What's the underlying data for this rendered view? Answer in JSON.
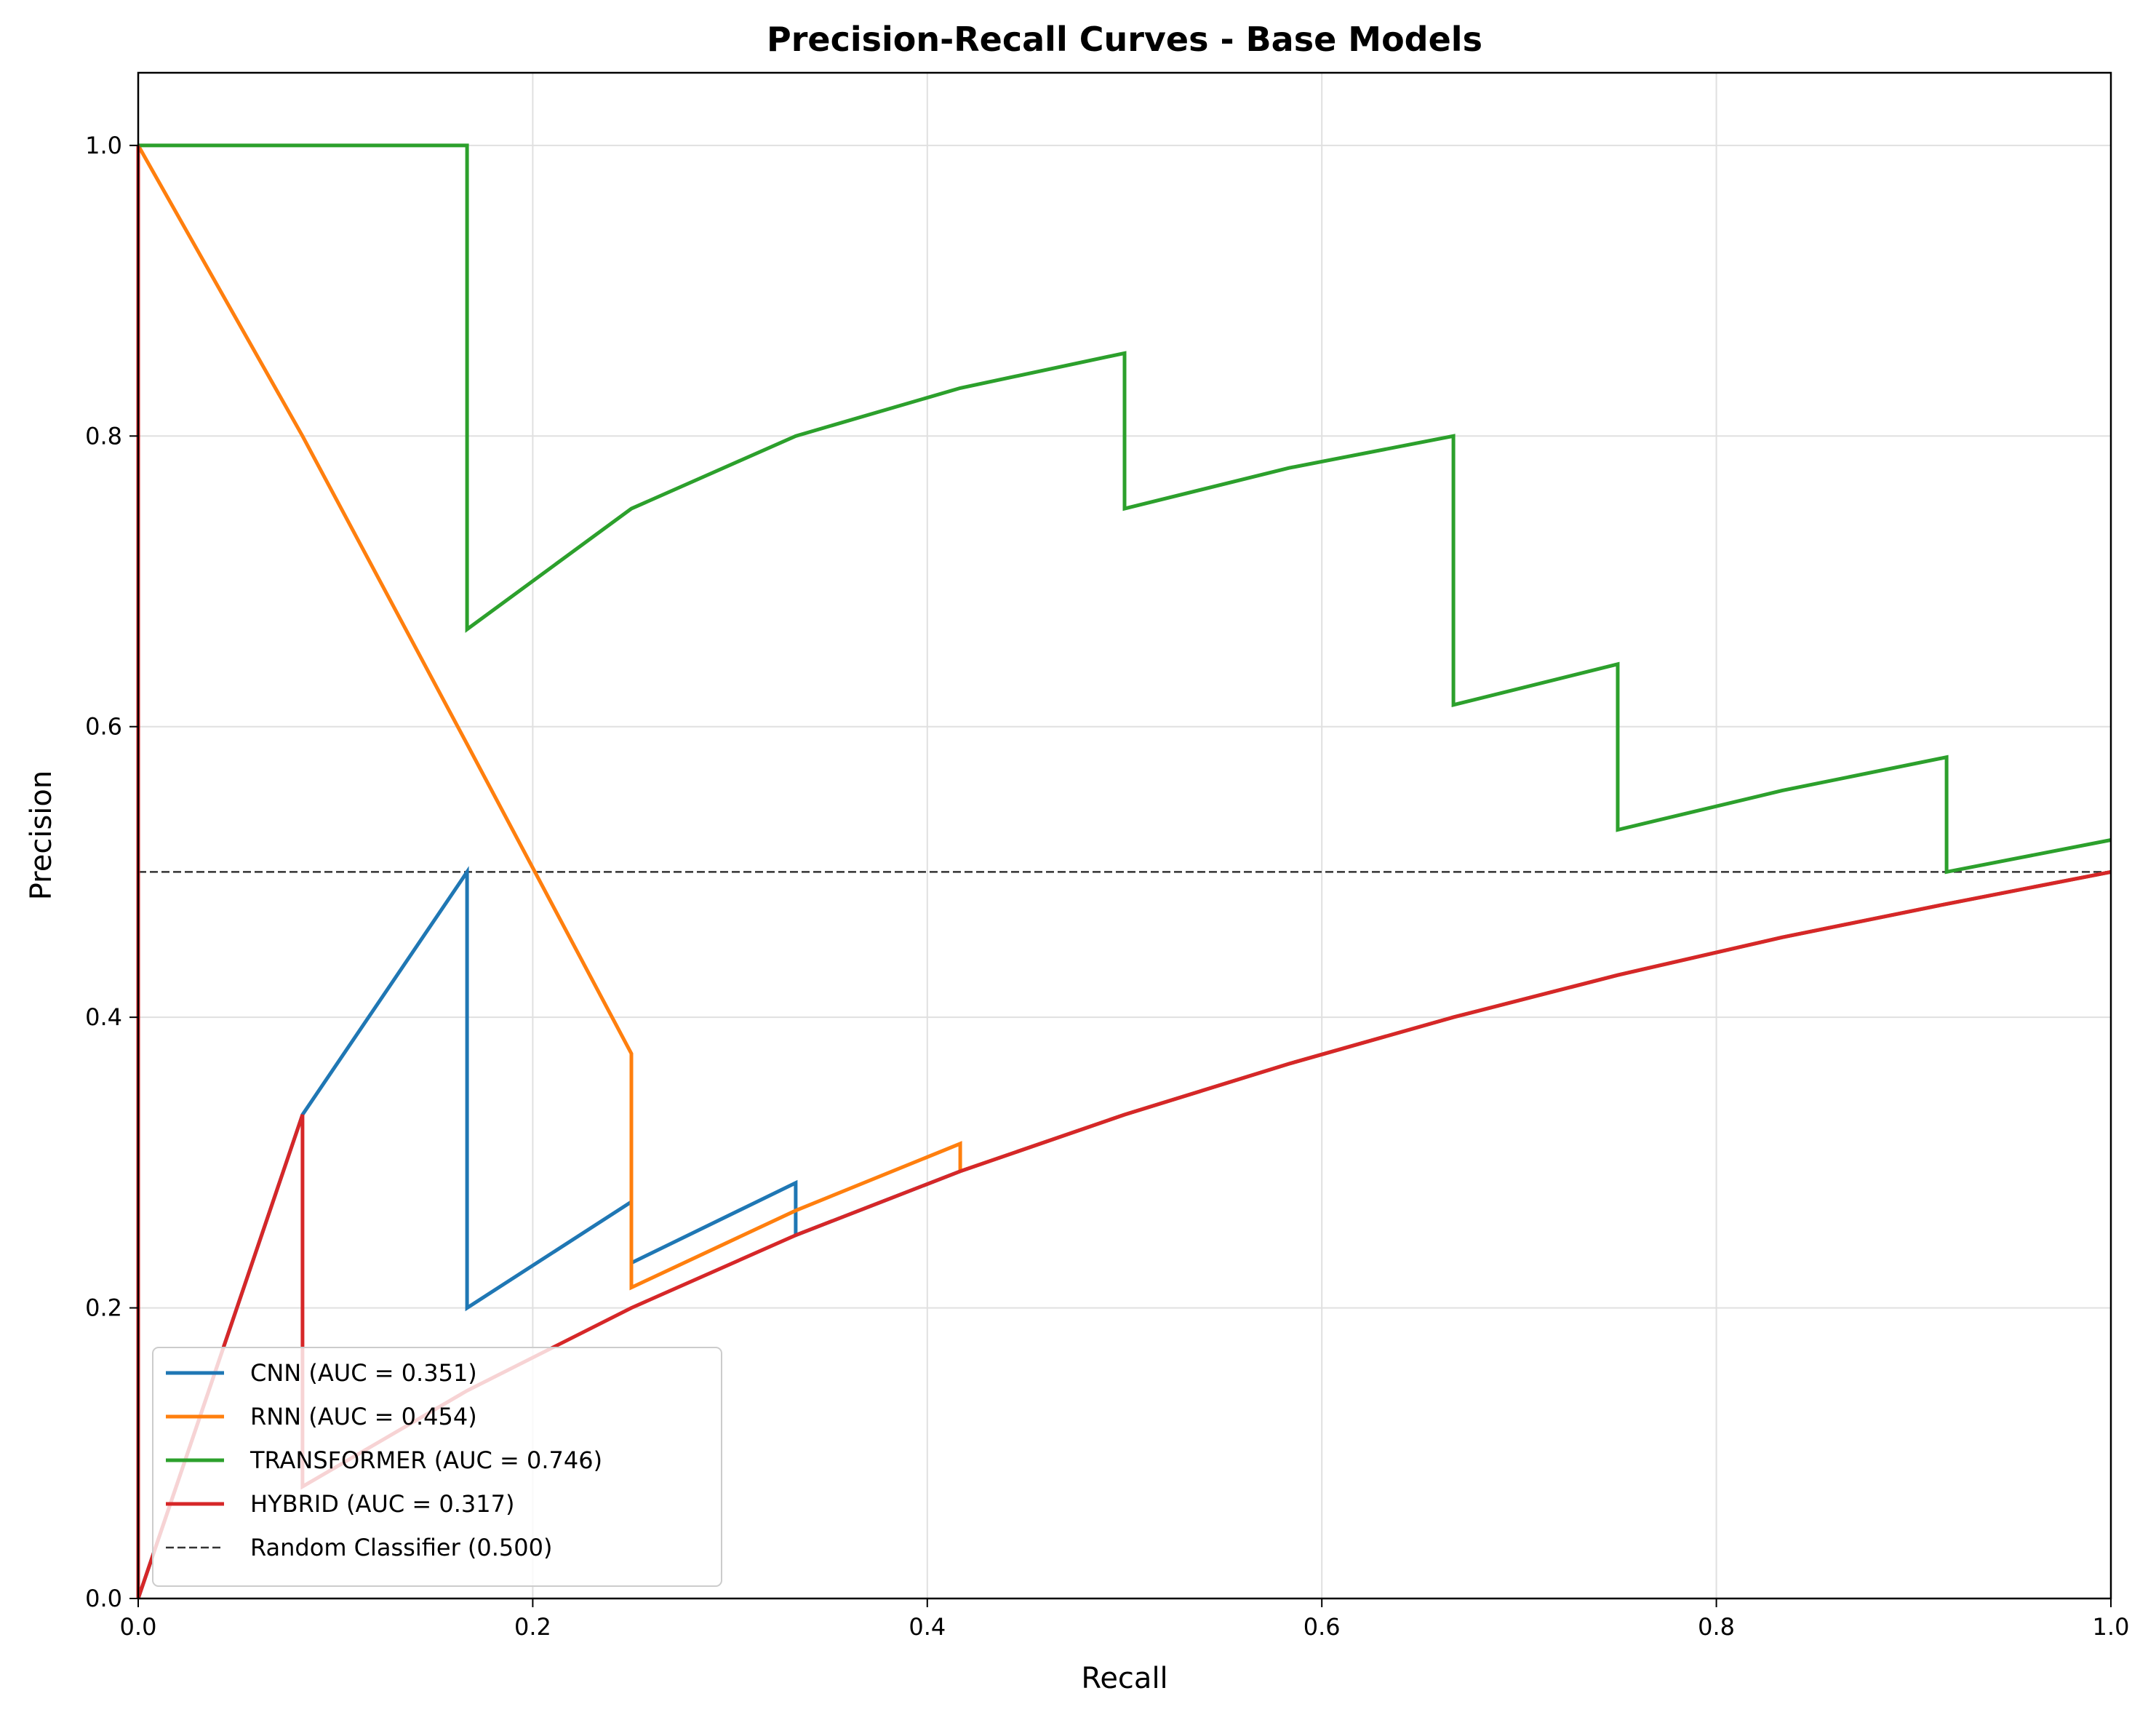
{
  "chart_data": {
    "type": "line",
    "title": "Precision-Recall Curves - Base Models",
    "xlabel": "Recall",
    "ylabel": "Precision",
    "xlim": [
      0.0,
      1.0
    ],
    "ylim": [
      0.0,
      1.05
    ],
    "xticks": [
      "0.0",
      "0.2",
      "0.4",
      "0.6",
      "0.8",
      "1.0"
    ],
    "yticks": [
      "0.0",
      "0.2",
      "0.4",
      "0.6",
      "0.8",
      "1.0"
    ],
    "grid": true,
    "legend_position": "lower-left",
    "series": [
      {
        "name": "CNN (AUC = 0.351)",
        "color": "#1f77b4",
        "points": [
          [
            0.0,
            1.0
          ],
          [
            0.0,
            0.0
          ],
          [
            0.0833,
            0.333
          ],
          [
            0.1667,
            0.5
          ],
          [
            0.1667,
            0.2
          ],
          [
            0.25,
            0.273
          ],
          [
            0.25,
            0.231
          ],
          [
            0.3333,
            0.286
          ],
          [
            0.3333,
            0.25
          ],
          [
            0.4167,
            0.294
          ],
          [
            0.5,
            0.333
          ],
          [
            0.5833,
            0.368
          ],
          [
            0.6667,
            0.4
          ],
          [
            0.75,
            0.429
          ],
          [
            0.8333,
            0.455
          ],
          [
            0.9167,
            0.478
          ],
          [
            1.0,
            0.5
          ]
        ]
      },
      {
        "name": "RNN (AUC = 0.454)",
        "color": "#ff7f0e",
        "points": [
          [
            0.0,
            1.0
          ],
          [
            0.0833,
            0.8
          ],
          [
            0.1667,
            0.588
          ],
          [
            0.25,
            0.375
          ],
          [
            0.25,
            0.214
          ],
          [
            0.3333,
            0.267
          ],
          [
            0.4167,
            0.313
          ],
          [
            0.4167,
            0.294
          ],
          [
            0.5,
            0.333
          ],
          [
            0.5833,
            0.368
          ],
          [
            0.6667,
            0.4
          ],
          [
            0.75,
            0.429
          ],
          [
            0.8333,
            0.455
          ],
          [
            0.9167,
            0.478
          ],
          [
            1.0,
            0.5
          ]
        ]
      },
      {
        "name": "TRANSFORMER (AUC = 0.746)",
        "color": "#2ca02c",
        "points": [
          [
            0.0,
            1.0
          ],
          [
            0.0833,
            1.0
          ],
          [
            0.1667,
            1.0
          ],
          [
            0.1667,
            0.667
          ],
          [
            0.25,
            0.75
          ],
          [
            0.3333,
            0.8
          ],
          [
            0.4167,
            0.833
          ],
          [
            0.5,
            0.857
          ],
          [
            0.5,
            0.75
          ],
          [
            0.5833,
            0.778
          ],
          [
            0.6667,
            0.8
          ],
          [
            0.6667,
            0.615
          ],
          [
            0.75,
            0.643
          ],
          [
            0.75,
            0.529
          ],
          [
            0.8333,
            0.556
          ],
          [
            0.9167,
            0.579
          ],
          [
            0.9167,
            0.5
          ],
          [
            1.0,
            0.522
          ]
        ]
      },
      {
        "name": "HYBRID (AUC = 0.317)",
        "color": "#d62728",
        "points": [
          [
            0.0,
            1.0
          ],
          [
            0.0,
            0.0
          ],
          [
            0.0833,
            0.333
          ],
          [
            0.0833,
            0.077
          ],
          [
            0.1667,
            0.143
          ],
          [
            0.25,
            0.2
          ],
          [
            0.3333,
            0.25
          ],
          [
            0.4167,
            0.294
          ],
          [
            0.5,
            0.333
          ],
          [
            0.5833,
            0.368
          ],
          [
            0.6667,
            0.4
          ],
          [
            0.75,
            0.429
          ],
          [
            0.8333,
            0.455
          ],
          [
            0.9167,
            0.478
          ],
          [
            1.0,
            0.5
          ]
        ]
      }
    ],
    "reference_line": {
      "name": "Random Classifier (0.500)",
      "y": 0.5,
      "color": "#333333",
      "style": "dashed"
    }
  }
}
